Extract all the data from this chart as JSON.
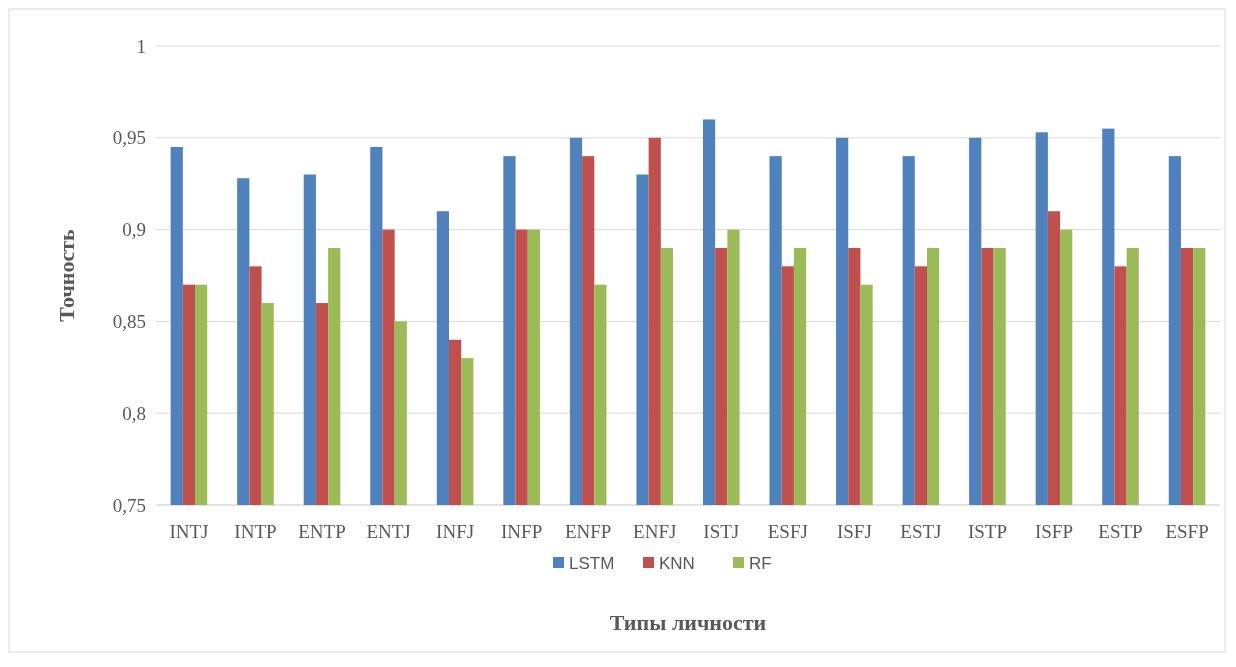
{
  "chart_data": {
    "type": "bar",
    "xlabel": "Типы личности",
    "ylabel": "Точность",
    "categories": [
      "INTJ",
      "INTP",
      "ENTP",
      "ENTJ",
      "INFJ",
      "INFP",
      "ENFP",
      "ENFJ",
      "ISTJ",
      "ESFJ",
      "ISFJ",
      "ESTJ",
      "ISTP",
      "ISFP",
      "ESTP",
      "ESFP"
    ],
    "series": [
      {
        "name": "LSTM",
        "color": "#4f81bd",
        "values": [
          0.945,
          0.928,
          0.93,
          0.945,
          0.91,
          0.94,
          0.95,
          0.93,
          0.96,
          0.94,
          0.95,
          0.94,
          0.95,
          0.953,
          0.955,
          0.94
        ]
      },
      {
        "name": "KNN",
        "color": "#c0504d",
        "values": [
          0.87,
          0.88,
          0.86,
          0.9,
          0.84,
          0.9,
          0.94,
          0.95,
          0.89,
          0.88,
          0.89,
          0.88,
          0.89,
          0.91,
          0.88,
          0.89
        ]
      },
      {
        "name": "RF",
        "color": "#9bbb59",
        "values": [
          0.87,
          0.86,
          0.89,
          0.85,
          0.83,
          0.9,
          0.87,
          0.89,
          0.9,
          0.89,
          0.87,
          0.89,
          0.89,
          0.9,
          0.89,
          0.89
        ]
      }
    ],
    "ylim": [
      0.75,
      1
    ],
    "yticks": [
      {
        "value": 0.75,
        "label": "0,75"
      },
      {
        "value": 0.8,
        "label": "0,8"
      },
      {
        "value": 0.85,
        "label": "0,85"
      },
      {
        "value": 0.9,
        "label": "0,9"
      },
      {
        "value": 0.95,
        "label": "0,95"
      },
      {
        "value": 1,
        "label": "1"
      }
    ],
    "grid": "y",
    "legend": "bottom"
  }
}
